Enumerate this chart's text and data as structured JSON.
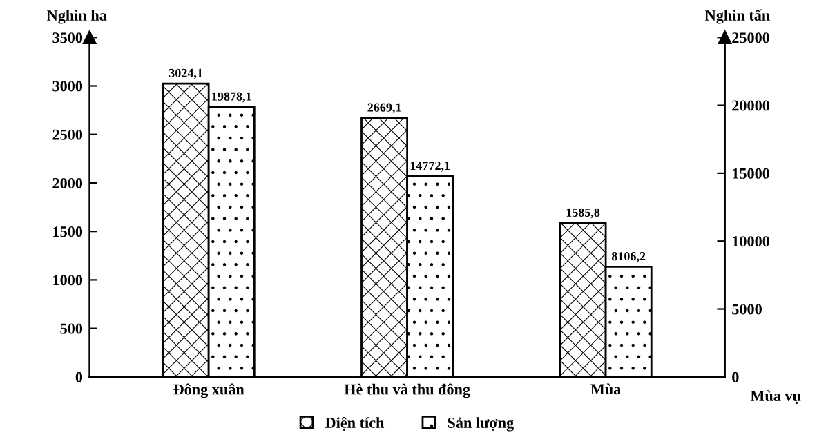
{
  "chart_data": {
    "type": "bar",
    "categories": [
      "Đông xuân",
      "Hè thu và thu đông",
      "Mùa"
    ],
    "xlabel": "Mùa vụ",
    "ylabel": "Nghìn ha",
    "y2label": "Nghìn tấn",
    "series": [
      {
        "name": "Diện tích",
        "color": "#000000",
        "values": [
          3024.1,
          2669.1,
          1585.8
        ],
        "value_labels": [
          "3024,1",
          "2669,1",
          "1585,8"
        ]
      },
      {
        "name": "Sản lượng",
        "color": "#000000",
        "axis": "y2",
        "values": [
          19878.1,
          14772.1,
          8106.2
        ],
        "value_labels": [
          "19878,1",
          "14772,1",
          "8106,2"
        ]
      }
    ],
    "ylim": [
      0,
      3500
    ],
    "yticks": [
      0,
      500,
      1000,
      1500,
      2000,
      2500,
      3000,
      3500
    ],
    "y2lim": [
      0,
      25000
    ],
    "y2ticks": [
      0,
      5000,
      10000,
      15000,
      20000,
      25000
    ],
    "legend": "bottom",
    "grid": false
  }
}
